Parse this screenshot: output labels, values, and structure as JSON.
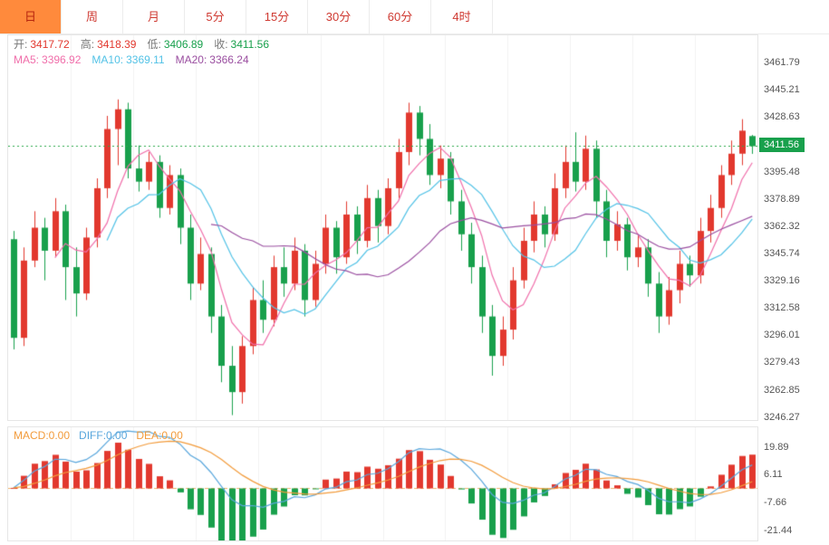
{
  "toolbar": {
    "active_index": 0,
    "tabs": [
      {
        "id": "day",
        "label": "日"
      },
      {
        "id": "week",
        "label": "周"
      },
      {
        "id": "month",
        "label": "月"
      },
      {
        "id": "5min",
        "label": "5分"
      },
      {
        "id": "15min",
        "label": "15分"
      },
      {
        "id": "30min",
        "label": "30分"
      },
      {
        "id": "60min",
        "label": "60分"
      },
      {
        "id": "4hour",
        "label": "4时"
      }
    ]
  },
  "legend": {
    "open_label": "开:",
    "open_value": "3417.72",
    "high_label": "高:",
    "high_value": "3418.39",
    "low_label": "低:",
    "low_value": "3406.89",
    "close_label": "收:",
    "close_value": "3411.56",
    "ma5_label": "MA5:",
    "ma5_value": "3396.92",
    "ma10_label": "MA10:",
    "ma10_value": "3369.11",
    "ma20_label": "MA20:",
    "ma20_value": "3366.24"
  },
  "macd_legend": {
    "macd_label": "MACD:",
    "macd_value": "0.00",
    "diff_label": "DIFF:",
    "diff_value": "0.00",
    "dea_label": "DEA:",
    "dea_value": "0.00"
  },
  "price_axis": {
    "ticks": [
      "3461.79",
      "3445.21",
      "3428.63",
      "3411.56",
      "3395.48",
      "3378.89",
      "3362.32",
      "3345.74",
      "3329.16",
      "3312.58",
      "3296.01",
      "3279.43",
      "3262.85",
      "3246.27"
    ],
    "current": "3411.56"
  },
  "macd_axis": {
    "ticks": [
      "19.89",
      "6.11",
      "-7.66",
      "-21.44"
    ]
  },
  "colors": {
    "up": "#e2382e",
    "down": "#18a04c",
    "ma5": "#f06eaa",
    "ma10": "#52c2e6",
    "ma20": "#9a4ea0",
    "diff": "#58a6dc",
    "dea": "#f29b3b",
    "current_line": "#2aa84a",
    "badge_bg": "#18a04c",
    "grid": "#f2f2f2",
    "zero_line": "#f0b069",
    "tab_active_bg": "#ff8a3c",
    "tab_text": "#cf3a32"
  },
  "chart_data": {
    "type": "candlestick",
    "panels": [
      "price",
      "macd"
    ],
    "timeframe": "日",
    "ohlc": {
      "open": 3417.72,
      "high": 3418.39,
      "low": 3406.89,
      "close": 3411.56
    },
    "ma_values": {
      "MA5": 3396.92,
      "MA10": 3369.11,
      "MA20": 3366.24
    },
    "macd_values": {
      "MACD": 0,
      "DIFF": 0,
      "DEA": 0
    },
    "current_price": 3411.56,
    "ylim": [
      3245,
      3479
    ],
    "y_ticks": [
      3461.79,
      3445.21,
      3428.63,
      3411.56,
      3395.48,
      3378.89,
      3362.32,
      3345.74,
      3329.16,
      3312.58,
      3296.01,
      3279.43,
      3262.85,
      3246.27
    ],
    "macd_ylim": [
      -26,
      30
    ],
    "macd_y_ticks": [
      19.89,
      6.11,
      -7.66,
      -21.44
    ],
    "grid": "vertical",
    "legend_position": "top-left",
    "candles": [
      [
        3355,
        3360,
        3288,
        3295
      ],
      [
        3295,
        3350,
        3290,
        3342
      ],
      [
        3342,
        3372,
        3338,
        3362
      ],
      [
        3362,
        3368,
        3330,
        3348
      ],
      [
        3348,
        3380,
        3344,
        3372
      ],
      [
        3372,
        3376,
        3318,
        3338
      ],
      [
        3338,
        3350,
        3308,
        3322
      ],
      [
        3322,
        3362,
        3318,
        3356
      ],
      [
        3356,
        3392,
        3350,
        3386
      ],
      [
        3386,
        3430,
        3380,
        3422
      ],
      [
        3422,
        3440,
        3400,
        3434
      ],
      [
        3434,
        3438,
        3392,
        3398
      ],
      [
        3398,
        3412,
        3384,
        3390
      ],
      [
        3390,
        3408,
        3385,
        3402
      ],
      [
        3402,
        3406,
        3368,
        3374
      ],
      [
        3374,
        3400,
        3370,
        3394
      ],
      [
        3394,
        3398,
        3352,
        3362
      ],
      [
        3362,
        3370,
        3318,
        3328
      ],
      [
        3328,
        3356,
        3324,
        3346
      ],
      [
        3346,
        3350,
        3298,
        3308
      ],
      [
        3308,
        3315,
        3268,
        3278
      ],
      [
        3278,
        3290,
        3248,
        3262
      ],
      [
        3262,
        3296,
        3255,
        3290
      ],
      [
        3290,
        3326,
        3285,
        3318
      ],
      [
        3318,
        3330,
        3298,
        3306
      ],
      [
        3306,
        3345,
        3302,
        3338
      ],
      [
        3338,
        3350,
        3320,
        3328
      ],
      [
        3328,
        3356,
        3324,
        3348
      ],
      [
        3348,
        3352,
        3308,
        3318
      ],
      [
        3318,
        3348,
        3314,
        3340
      ],
      [
        3340,
        3370,
        3334,
        3362
      ],
      [
        3362,
        3366,
        3334,
        3344
      ],
      [
        3344,
        3378,
        3340,
        3370
      ],
      [
        3370,
        3375,
        3346,
        3354
      ],
      [
        3354,
        3388,
        3350,
        3380
      ],
      [
        3380,
        3385,
        3353,
        3363
      ],
      [
        3363,
        3392,
        3358,
        3386
      ],
      [
        3386,
        3416,
        3380,
        3408
      ],
      [
        3408,
        3438,
        3400,
        3432
      ],
      [
        3432,
        3436,
        3406,
        3416
      ],
      [
        3416,
        3425,
        3388,
        3394
      ],
      [
        3394,
        3412,
        3386,
        3404
      ],
      [
        3404,
        3408,
        3370,
        3378
      ],
      [
        3378,
        3385,
        3348,
        3358
      ],
      [
        3358,
        3365,
        3328,
        3338
      ],
      [
        3338,
        3345,
        3298,
        3308
      ],
      [
        3308,
        3315,
        3272,
        3284
      ],
      [
        3284,
        3308,
        3278,
        3300
      ],
      [
        3300,
        3338,
        3294,
        3330
      ],
      [
        3330,
        3362,
        3325,
        3354
      ],
      [
        3354,
        3378,
        3347,
        3370
      ],
      [
        3370,
        3375,
        3350,
        3358
      ],
      [
        3358,
        3395,
        3354,
        3386
      ],
      [
        3386,
        3412,
        3380,
        3402
      ],
      [
        3402,
        3420,
        3384,
        3390
      ],
      [
        3390,
        3418,
        3385,
        3410
      ],
      [
        3410,
        3415,
        3368,
        3378
      ],
      [
        3378,
        3385,
        3344,
        3354
      ],
      [
        3354,
        3372,
        3348,
        3364
      ],
      [
        3364,
        3368,
        3336,
        3344
      ],
      [
        3344,
        3358,
        3338,
        3350
      ],
      [
        3350,
        3355,
        3320,
        3328
      ],
      [
        3328,
        3335,
        3298,
        3308
      ],
      [
        3308,
        3332,
        3303,
        3324
      ],
      [
        3324,
        3348,
        3316,
        3340
      ],
      [
        3340,
        3345,
        3326,
        3333
      ],
      [
        3333,
        3368,
        3328,
        3360
      ],
      [
        3360,
        3382,
        3353,
        3374
      ],
      [
        3374,
        3400,
        3368,
        3394
      ],
      [
        3394,
        3415,
        3388,
        3407
      ],
      [
        3407,
        3428,
        3400,
        3421
      ],
      [
        3417.72,
        3418.39,
        3406.89,
        3411.56
      ]
    ]
  }
}
